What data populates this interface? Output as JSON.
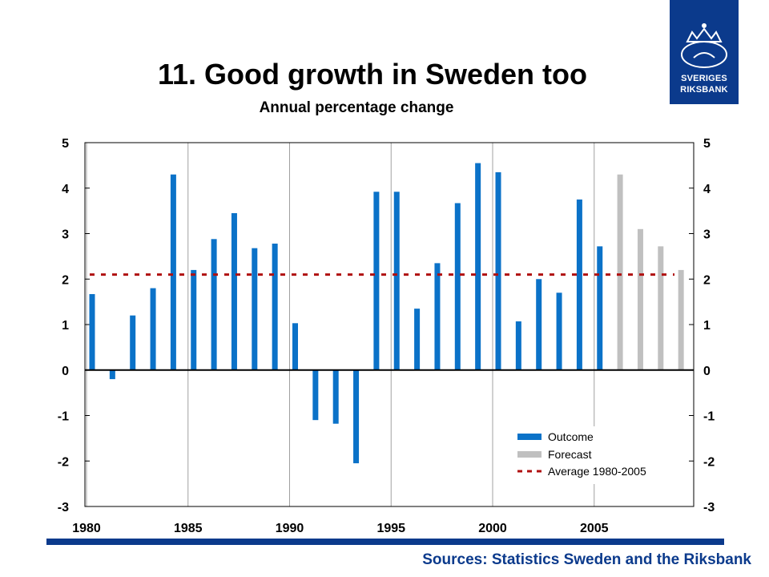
{
  "title": "11. Good growth in Sweden too",
  "subtitle": "Annual percentage change",
  "source": "Sources: Statistics Sweden and the Riksbank",
  "logo": {
    "line1": "SVERIGES",
    "line2": "RIKSBANK"
  },
  "colors": {
    "outcome": "#0b72c8",
    "forecast": "#c0c0c0",
    "average": "#b01010",
    "brand": "#0b3a8c"
  },
  "chart_data": {
    "type": "bar",
    "ylim": [
      -3,
      5
    ],
    "yticks": [
      -3,
      -2,
      -1,
      0,
      1,
      2,
      3,
      4,
      5
    ],
    "xticks": [
      1980,
      1985,
      1990,
      1995,
      2000,
      2005
    ],
    "grid": "vertical at 5-year ticks",
    "legend_position": "bottom-right",
    "series": [
      {
        "name": "Outcome",
        "x": [
          1980,
          1981,
          1982,
          1983,
          1984,
          1985,
          1986,
          1987,
          1988,
          1989,
          1990,
          1991,
          1992,
          1993,
          1994,
          1995,
          1996,
          1997,
          1998,
          1999,
          2000,
          2001,
          2002,
          2003,
          2004,
          2005
        ],
        "values": [
          1.67,
          -0.2,
          1.2,
          1.8,
          4.3,
          2.2,
          2.88,
          3.45,
          2.68,
          2.78,
          1.03,
          -1.1,
          -1.18,
          -2.05,
          3.92,
          3.92,
          1.35,
          2.35,
          3.67,
          4.55,
          4.35,
          1.07,
          2.0,
          1.7,
          3.75,
          2.72
        ]
      },
      {
        "name": "Forecast",
        "x": [
          2006,
          2007,
          2008,
          2009
        ],
        "values": [
          4.3,
          3.1,
          2.72,
          2.2
        ]
      },
      {
        "name": "Average 1980-2005",
        "type": "line",
        "value": 2.1
      }
    ]
  }
}
